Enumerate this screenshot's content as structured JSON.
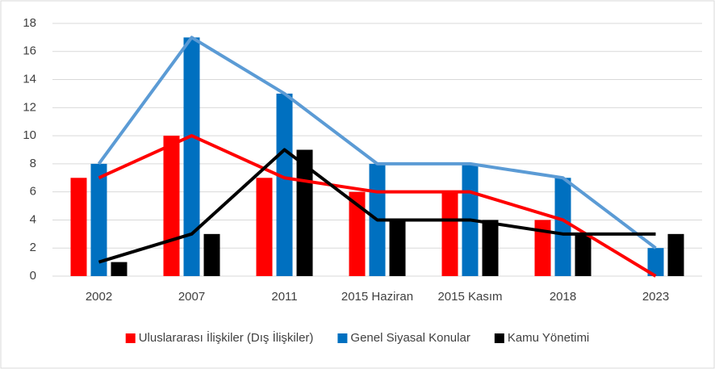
{
  "chart_data": {
    "type": "bar",
    "overlay_lines": true,
    "categories": [
      "2002",
      "2007",
      "2011",
      "2015 Haziran",
      "2015 Kasım",
      "2018",
      "2023"
    ],
    "series": [
      {
        "name": "Uluslararası İlişkiler (Dış İlişkiler)",
        "color": "#ff0000",
        "line_color": "#ff0000",
        "values": [
          7,
          10,
          7,
          6,
          6,
          4,
          0
        ]
      },
      {
        "name": "Genel Siyasal Konular",
        "color": "#0070c0",
        "line_color": "#5b9bd5",
        "values": [
          8,
          17,
          13,
          8,
          8,
          7,
          2
        ]
      },
      {
        "name": "Kamu Yönetimi",
        "color": "#000000",
        "line_color": "#000000",
        "values": [
          1,
          3,
          9,
          4,
          4,
          3,
          3
        ]
      }
    ],
    "ylim": [
      0,
      18
    ],
    "yticks": [
      0,
      2,
      4,
      6,
      8,
      10,
      12,
      14,
      16,
      18
    ],
    "grid": true,
    "legend": "bottom"
  }
}
